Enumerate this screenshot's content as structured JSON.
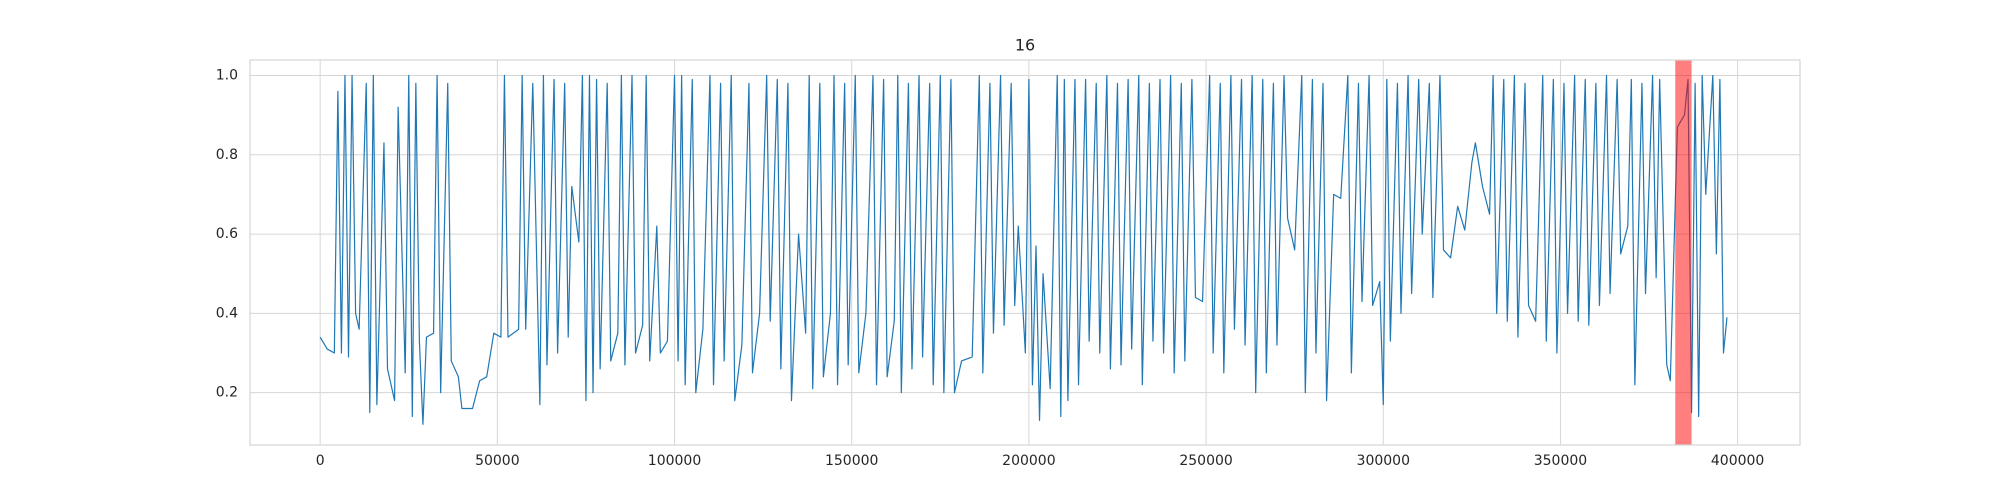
{
  "chart_data": {
    "type": "line",
    "title": "16",
    "color": "#1f77b4",
    "x": [
      0,
      2000,
      4000,
      5000,
      6000,
      7000,
      8000,
      9000,
      10000,
      11000,
      13000,
      14000,
      15000,
      16000,
      18000,
      19000,
      21000,
      22000,
      24000,
      25000,
      26000,
      27000,
      28000,
      29000,
      30000,
      32000,
      33000,
      34000,
      36000,
      37000,
      39000,
      40000,
      43000,
      45000,
      47000,
      49000,
      51000,
      52000,
      53000,
      56000,
      57000,
      58000,
      60000,
      62000,
      63000,
      64000,
      66000,
      67000,
      69000,
      70000,
      71000,
      73000,
      74000,
      75000,
      76000,
      77000,
      78000,
      79000,
      81000,
      82000,
      84000,
      85000,
      86000,
      88000,
      89000,
      91000,
      92000,
      93000,
      95000,
      96000,
      98000,
      100000,
      101000,
      102000,
      103000,
      105000,
      106000,
      108000,
      110000,
      111000,
      113000,
      114000,
      116000,
      117000,
      119000,
      121000,
      122000,
      124000,
      126000,
      127000,
      129000,
      130000,
      132000,
      133000,
      135000,
      137000,
      138000,
      139000,
      141000,
      142000,
      144000,
      145000,
      146000,
      148000,
      149000,
      151000,
      152000,
      154000,
      156000,
      157000,
      159000,
      160000,
      162000,
      163000,
      164000,
      166000,
      167000,
      169000,
      170000,
      172000,
      173000,
      175000,
      176000,
      178000,
      179000,
      181000,
      184000,
      186000,
      187000,
      189000,
      190000,
      192000,
      193000,
      195000,
      196000,
      197000,
      199000,
      200000,
      201000,
      202000,
      203000,
      204000,
      206000,
      208000,
      209000,
      210000,
      211000,
      213000,
      214000,
      216000,
      217000,
      219000,
      220000,
      222000,
      223000,
      225000,
      226000,
      228000,
      229000,
      231000,
      232000,
      234000,
      235000,
      237000,
      238000,
      240000,
      241000,
      243000,
      244000,
      246000,
      247000,
      249000,
      251000,
      252000,
      254000,
      255000,
      257000,
      258000,
      260000,
      261000,
      263000,
      264000,
      266000,
      267000,
      269000,
      270000,
      272000,
      273000,
      275000,
      277000,
      278000,
      280000,
      281000,
      283000,
      284000,
      286000,
      288000,
      290000,
      291000,
      293000,
      294000,
      296000,
      297000,
      299000,
      300000,
      301000,
      302000,
      304000,
      305000,
      307000,
      308000,
      310000,
      311000,
      313000,
      314000,
      316000,
      317000,
      319000,
      321000,
      323000,
      325000,
      326000,
      328000,
      330000,
      331000,
      332000,
      334000,
      335000,
      337000,
      338000,
      340000,
      341000,
      343000,
      345000,
      346000,
      348000,
      349000,
      351000,
      352000,
      354000,
      355000,
      357000,
      358000,
      360000,
      361000,
      363000,
      364000,
      366000,
      367000,
      369000,
      370000,
      371000,
      373000,
      374000,
      376000,
      377000,
      378000,
      380000,
      381000,
      383000,
      385000,
      386000,
      387000,
      388000,
      389000,
      390000,
      391000,
      393000,
      394000,
      395000,
      396000,
      397000
    ],
    "values": [
      0.34,
      0.31,
      0.3,
      0.96,
      0.3,
      1.0,
      0.29,
      1.0,
      0.4,
      0.36,
      0.98,
      0.15,
      1.0,
      0.17,
      0.83,
      0.26,
      0.18,
      0.92,
      0.25,
      1.0,
      0.14,
      0.98,
      0.33,
      0.12,
      0.34,
      0.35,
      1.0,
      0.2,
      0.98,
      0.28,
      0.24,
      0.16,
      0.16,
      0.23,
      0.24,
      0.35,
      0.34,
      1.0,
      0.34,
      0.36,
      1.0,
      0.36,
      0.98,
      0.17,
      1.0,
      0.27,
      0.99,
      0.3,
      0.98,
      0.34,
      0.72,
      0.58,
      1.0,
      0.18,
      1.0,
      0.2,
      0.99,
      0.26,
      0.98,
      0.28,
      0.35,
      1.0,
      0.27,
      1.0,
      0.3,
      0.37,
      1.0,
      0.28,
      0.62,
      0.3,
      0.33,
      1.0,
      0.28,
      1.0,
      0.22,
      0.99,
      0.2,
      0.36,
      1.0,
      0.22,
      0.98,
      0.28,
      1.0,
      0.18,
      0.32,
      0.98,
      0.25,
      0.4,
      1.0,
      0.38,
      0.99,
      0.26,
      0.98,
      0.18,
      0.6,
      0.35,
      1.0,
      0.21,
      0.98,
      0.24,
      0.4,
      1.0,
      0.22,
      0.98,
      0.27,
      1.0,
      0.25,
      0.4,
      1.0,
      0.22,
      0.99,
      0.24,
      0.38,
      1.0,
      0.2,
      0.98,
      0.26,
      1.0,
      0.29,
      0.98,
      0.22,
      1.0,
      0.2,
      0.99,
      0.2,
      0.28,
      0.29,
      1.0,
      0.25,
      0.98,
      0.35,
      1.0,
      0.37,
      0.98,
      0.42,
      0.62,
      0.3,
      0.99,
      0.22,
      0.57,
      0.13,
      0.5,
      0.21,
      1.0,
      0.14,
      0.99,
      0.18,
      0.99,
      0.22,
      0.99,
      0.33,
      0.98,
      0.3,
      1.0,
      0.26,
      0.98,
      0.27,
      0.99,
      0.31,
      1.0,
      0.22,
      0.98,
      0.33,
      0.99,
      0.3,
      1.0,
      0.25,
      0.98,
      0.28,
      0.99,
      0.44,
      0.43,
      1.0,
      0.3,
      0.98,
      0.25,
      1.0,
      0.36,
      0.99,
      0.32,
      1.0,
      0.2,
      0.99,
      0.25,
      0.98,
      0.32,
      1.0,
      0.64,
      0.56,
      1.0,
      0.2,
      0.99,
      0.3,
      0.98,
      0.18,
      0.7,
      0.69,
      1.0,
      0.25,
      0.98,
      0.43,
      1.0,
      0.42,
      0.48,
      0.17,
      0.99,
      0.33,
      0.98,
      0.4,
      1.0,
      0.45,
      0.99,
      0.6,
      0.98,
      0.44,
      1.0,
      0.56,
      0.54,
      0.67,
      0.61,
      0.78,
      0.83,
      0.72,
      0.65,
      1.0,
      0.4,
      0.99,
      0.38,
      1.0,
      0.34,
      0.98,
      0.42,
      0.38,
      1.0,
      0.33,
      0.99,
      0.3,
      0.98,
      0.4,
      1.0,
      0.38,
      0.99,
      0.37,
      0.98,
      0.42,
      1.0,
      0.45,
      0.99,
      0.55,
      0.62,
      0.99,
      0.22,
      0.98,
      0.45,
      1.0,
      0.49,
      0.99,
      0.27,
      0.23,
      0.87,
      0.9,
      0.99,
      0.15,
      0.98,
      0.14,
      1.0,
      0.7,
      1.0,
      0.55,
      0.99,
      0.3,
      0.39
    ],
    "xlim": [
      -19800,
      417600
    ],
    "ylim": [
      0.068,
      1.039
    ],
    "xticks": [
      0,
      50000,
      100000,
      150000,
      200000,
      250000,
      300000,
      350000,
      400000
    ],
    "yticks": [
      0.2,
      0.4,
      0.6,
      0.8,
      {
        "value": 1,
        "label": "1.0"
      }
    ],
    "grid": true,
    "highlight": [
      382400,
      387000
    ],
    "highlight_color": "#ff0000",
    "highlight_alpha": 0.5
  }
}
